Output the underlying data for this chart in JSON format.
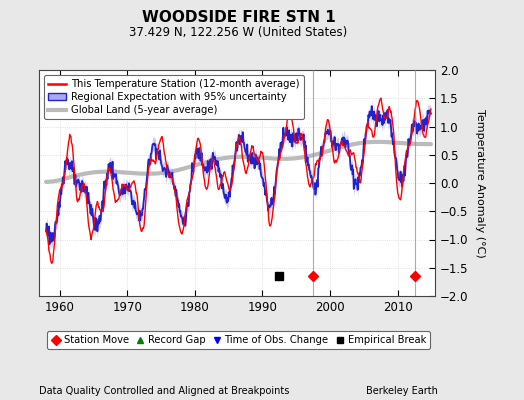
{
  "title": "WOODSIDE FIRE STN 1",
  "subtitle": "37.429 N, 122.256 W (United States)",
  "ylabel": "Temperature Anomaly (°C)",
  "xlabel_note": "Data Quality Controlled and Aligned at Breakpoints",
  "credit": "Berkeley Earth",
  "ylim": [
    -2,
    2
  ],
  "xlim": [
    1957,
    2015.5
  ],
  "xticks": [
    1960,
    1970,
    1980,
    1990,
    2000,
    2010
  ],
  "yticks": [
    -2,
    -1.5,
    -1,
    -0.5,
    0,
    0.5,
    1,
    1.5,
    2
  ],
  "station_color": "#FF0000",
  "regional_color": "#2222CC",
  "regional_fill": "#AAAAEE",
  "global_color": "#BBBBBB",
  "bg_color": "#E8E8E8",
  "plot_bg": "#FFFFFF",
  "station_move_years": [
    1997.5,
    2012.5
  ],
  "empirical_break_years": [
    1992.5
  ],
  "legend_labels": [
    "This Temperature Station (12-month average)",
    "Regional Expectation with 95% uncertainty",
    "Global Land (5-year average)"
  ],
  "marker_labels": [
    "Station Move",
    "Record Gap",
    "Time of Obs. Change",
    "Empirical Break"
  ]
}
